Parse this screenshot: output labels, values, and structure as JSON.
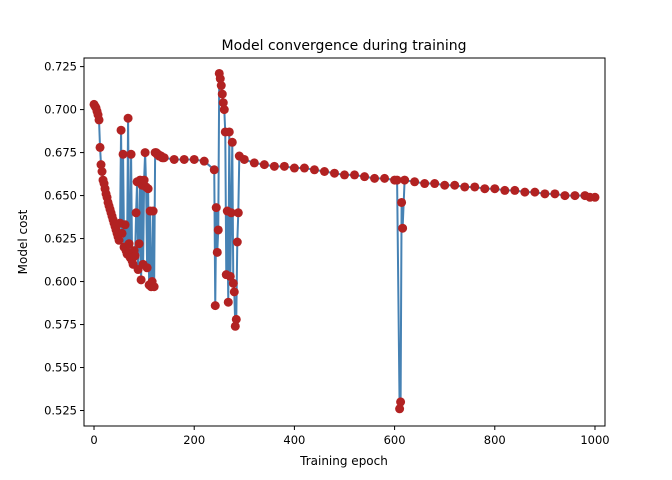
{
  "chart_data": {
    "type": "line",
    "title": "Model convergence during training",
    "xlabel": "Training epoch",
    "ylabel": "Model cost",
    "xlim": [
      -20,
      1020
    ],
    "ylim": [
      0.516,
      0.73
    ],
    "xticks": [
      0,
      200,
      400,
      600,
      800,
      1000
    ],
    "yticks": [
      0.525,
      0.55,
      0.575,
      0.6,
      0.625,
      0.65,
      0.675,
      0.7,
      0.725
    ],
    "ytick_labels": [
      "0.525",
      "0.550",
      "0.575",
      "0.600",
      "0.625",
      "0.650",
      "0.675",
      "0.700",
      "0.725"
    ],
    "grid": false,
    "line_color": "#4682b4",
    "marker_color": "#b22222",
    "series": [
      {
        "x": [
          0,
          2,
          4,
          6,
          8,
          10,
          12,
          14,
          16,
          18,
          20,
          22,
          24,
          26,
          28,
          30,
          32,
          34,
          36,
          38,
          40,
          42,
          44,
          46,
          48,
          50,
          52,
          54,
          56,
          58,
          60,
          62,
          64,
          66,
          68,
          70,
          72,
          74,
          76,
          78,
          80,
          82,
          84,
          86,
          88,
          90,
          92,
          94,
          96,
          98,
          100,
          102,
          104,
          106,
          108,
          110,
          112,
          114,
          116,
          118,
          120,
          122,
          124,
          126,
          128,
          130,
          132,
          134,
          136,
          138,
          140,
          160,
          180,
          200,
          220,
          240,
          242,
          244,
          246,
          248,
          250,
          252,
          254,
          256,
          258,
          260,
          262,
          264,
          266,
          268,
          270,
          272,
          274,
          276,
          278,
          280,
          282,
          284,
          286,
          288,
          290,
          300,
          320,
          340,
          360,
          380,
          400,
          420,
          440,
          460,
          480,
          500,
          520,
          540,
          560,
          580,
          600,
          605,
          610,
          612,
          614,
          616,
          620,
          640,
          660,
          680,
          700,
          720,
          740,
          760,
          780,
          800,
          820,
          840,
          860,
          880,
          900,
          920,
          940,
          960,
          980,
          990,
          1000
        ],
        "y": [
          0.703,
          0.702,
          0.701,
          0.699,
          0.697,
          0.694,
          0.678,
          0.668,
          0.664,
          0.659,
          0.657,
          0.654,
          0.651,
          0.649,
          0.646,
          0.644,
          0.642,
          0.64,
          0.638,
          0.636,
          0.634,
          0.632,
          0.63,
          0.628,
          0.626,
          0.624,
          0.634,
          0.688,
          0.628,
          0.674,
          0.62,
          0.633,
          0.618,
          0.616,
          0.695,
          0.622,
          0.614,
          0.674,
          0.612,
          0.61,
          0.618,
          0.615,
          0.64,
          0.658,
          0.607,
          0.622,
          0.659,
          0.601,
          0.656,
          0.61,
          0.659,
          0.675,
          0.655,
          0.608,
          0.654,
          0.598,
          0.641,
          0.597,
          0.6,
          0.641,
          0.597,
          0.675,
          0.675,
          0.674,
          0.674,
          0.673,
          0.673,
          0.673,
          0.672,
          0.672,
          0.672,
          0.671,
          0.671,
          0.671,
          0.67,
          0.665,
          0.586,
          0.643,
          0.617,
          0.63,
          0.721,
          0.718,
          0.714,
          0.709,
          0.704,
          0.7,
          0.687,
          0.604,
          0.641,
          0.588,
          0.687,
          0.603,
          0.64,
          0.681,
          0.599,
          0.594,
          0.574,
          0.578,
          0.623,
          0.64,
          0.673,
          0.671,
          0.669,
          0.668,
          0.667,
          0.667,
          0.666,
          0.666,
          0.665,
          0.664,
          0.663,
          0.662,
          0.662,
          0.661,
          0.66,
          0.66,
          0.659,
          0.659,
          0.526,
          0.53,
          0.646,
          0.631,
          0.659,
          0.658,
          0.657,
          0.657,
          0.656,
          0.656,
          0.655,
          0.655,
          0.654,
          0.654,
          0.653,
          0.653,
          0.652,
          0.652,
          0.651,
          0.651,
          0.65,
          0.65,
          0.65,
          0.649,
          0.649
        ]
      }
    ]
  }
}
